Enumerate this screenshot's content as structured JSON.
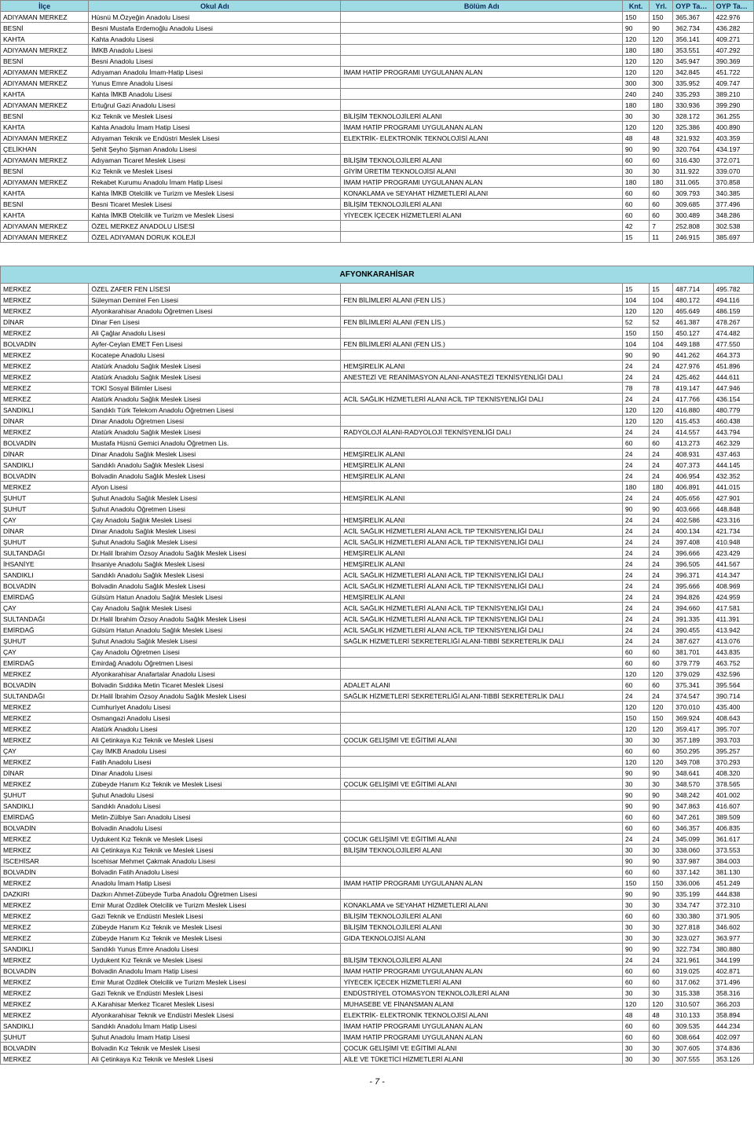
{
  "header": {
    "cols": [
      "İlçe",
      "Okul Adı",
      "Bölüm Adı",
      "Knt.",
      "Yrl.",
      "OYP Taban Puan",
      "OYP Tavan Puan"
    ]
  },
  "section2_title": "AFYONKARAHİSAR",
  "page_number": "- 7 -",
  "rows1": [
    [
      "ADIYAMAN MERKEZ",
      "Hüsnü M.Özyeğin Anadolu Lisesi",
      "",
      "150",
      "150",
      "365.367",
      "422.976"
    ],
    [
      "BESNİ",
      "Besni Mustafa Erdemoğlu Anadolu Lisesi",
      "",
      "90",
      "90",
      "362.734",
      "436.282"
    ],
    [
      "KAHTA",
      "Kahta Anadolu Lisesi",
      "",
      "120",
      "120",
      "356.141",
      "409.271"
    ],
    [
      "ADIYAMAN MERKEZ",
      "İMKB Anadolu Lisesi",
      "",
      "180",
      "180",
      "353.551",
      "407.292"
    ],
    [
      "BESNİ",
      "Besni Anadolu Lisesi",
      "",
      "120",
      "120",
      "345.947",
      "390.369"
    ],
    [
      "ADIYAMAN MERKEZ",
      "Adıyaman Anadolu İmam-Hatip Lisesi",
      "İMAM HATİP PROGRAMI UYGULANAN ALAN",
      "120",
      "120",
      "342.845",
      "451.722"
    ],
    [
      "ADIYAMAN MERKEZ",
      "Yunus Emre Anadolu Lisesi",
      "",
      "300",
      "300",
      "335.952",
      "409.747"
    ],
    [
      "KAHTA",
      "Kahta İMKB Anadolu Lisesi",
      "",
      "240",
      "240",
      "335.293",
      "389.210"
    ],
    [
      "ADIYAMAN MERKEZ",
      "Ertuğrul Gazi Anadolu Lisesi",
      "",
      "180",
      "180",
      "330.936",
      "399.290"
    ],
    [
      "BESNİ",
      "Kız Teknik ve Meslek Lisesi",
      "BİLİŞİM TEKNOLOJİLERİ ALANI",
      "30",
      "30",
      "328.172",
      "361.255"
    ],
    [
      "KAHTA",
      "Kahta Anadolu İmam Hatip Lisesi",
      "İMAM HATİP PROGRAMI UYGULANAN ALAN",
      "120",
      "120",
      "325.386",
      "400.890"
    ],
    [
      "ADIYAMAN MERKEZ",
      "Adıyaman Teknik ve Endüstri Meslek Lisesi",
      "ELEKTRİK- ELEKTRONİK TEKNOLOJİSİ ALANI",
      "48",
      "48",
      "321.932",
      "403.359"
    ],
    [
      "ÇELİKHAN",
      "Şehit Şeyho Şişman Anadolu Lisesi",
      "",
      "90",
      "90",
      "320.764",
      "434.197"
    ],
    [
      "ADIYAMAN MERKEZ",
      "Adıyaman Ticaret Meslek Lisesi",
      "BİLİŞİM TEKNOLOJİLERİ ALANI",
      "60",
      "60",
      "316.430",
      "372.071"
    ],
    [
      "BESNİ",
      "Kız Teknik ve Meslek Lisesi",
      "GİYİM ÜRETİM TEKNOLOJİSİ ALANI",
      "30",
      "30",
      "311.922",
      "339.070"
    ],
    [
      "ADIYAMAN MERKEZ",
      "Rekabet Kurumu Anadolu İmam Hatip Lisesi",
      "İMAM HATİP PROGRAMI UYGULANAN ALAN",
      "180",
      "180",
      "311.065",
      "370.858"
    ],
    [
      "KAHTA",
      "Kahta  İMKB Otelcilik ve Turizm ve Meslek Lisesi",
      "KONAKLAMA ve SEYAHAT HİZMETLERİ ALANI",
      "60",
      "60",
      "309.793",
      "340.385"
    ],
    [
      "BESNİ",
      "Besni Ticaret Meslek Lisesi",
      "BİLİŞİM TEKNOLOJİLERİ ALANI",
      "60",
      "60",
      "309.685",
      "377.496"
    ],
    [
      "KAHTA",
      "Kahta  İMKB Otelcilik ve Turizm ve Meslek Lisesi",
      "YİYECEK İÇECEK HİZMETLERİ ALANI",
      "60",
      "60",
      "300.489",
      "348.286"
    ],
    [
      "ADIYAMAN MERKEZ",
      "ÖZEL MERKEZ ANADOLU LİSESİ",
      "",
      "42",
      "7",
      "252.808",
      "302.538"
    ],
    [
      "ADIYAMAN MERKEZ",
      "ÖZEL ADIYAMAN DORUK KOLEJİ",
      "",
      "15",
      "11",
      "246.915",
      "385.697"
    ]
  ],
  "rows2": [
    [
      "MERKEZ",
      "ÖZEL ZAFER FEN LİSESİ",
      "",
      "15",
      "15",
      "487.714",
      "495.782"
    ],
    [
      "MERKEZ",
      "Süleyman Demirel Fen Lisesi",
      "FEN BİLİMLERİ ALANI (FEN LİS.)",
      "104",
      "104",
      "480.172",
      "494.116"
    ],
    [
      "MERKEZ",
      "Afyonkarahisar Anadolu Öğretmen Lisesi",
      "",
      "120",
      "120",
      "465.649",
      "486.159"
    ],
    [
      "DİNAR",
      "Dinar Fen Lisesi",
      "FEN BİLİMLERİ ALANI (FEN LİS.)",
      "52",
      "52",
      "461.387",
      "478.267"
    ],
    [
      "MERKEZ",
      "Ali Çağlar Anadolu Lisesi",
      "",
      "150",
      "150",
      "450.127",
      "474.482"
    ],
    [
      "BOLVADİN",
      "Ayfer-Ceylan EMET Fen Lisesi",
      "FEN BİLİMLERİ ALANI (FEN LİS.)",
      "104",
      "104",
      "449.188",
      "477.550"
    ],
    [
      "MERKEZ",
      "Kocatepe Anadolu Lisesi",
      "",
      "90",
      "90",
      "441.262",
      "464.373"
    ],
    [
      "MERKEZ",
      "Atatürk Anadolu Sağlık Meslek Lisesi",
      "HEMŞİRELİK ALANI",
      "24",
      "24",
      "427.976",
      "451.896"
    ],
    [
      "MERKEZ",
      "Atatürk Anadolu Sağlık Meslek Lisesi",
      "ANESTEZİ VE REANİMASYON ALANI-ANASTEZİ TEKNİSYENLİĞİ DALI",
      "24",
      "24",
      "425.462",
      "444.611"
    ],
    [
      "MERKEZ",
      "TOKİ Sosyal Bilimler Lisesi",
      "",
      "78",
      "78",
      "419.147",
      "447.946"
    ],
    [
      "MERKEZ",
      "Atatürk Anadolu Sağlık Meslek Lisesi",
      "ACİL SAĞLIK HİZMETLERİ ALANI ACİL TIP TEKNİSYENLİĞİ DALI",
      "24",
      "24",
      "417.766",
      "436.154"
    ],
    [
      "SANDIKLI",
      "Sandıklı Türk Telekom Anadolu Öğretmen Lisesi",
      "",
      "120",
      "120",
      "416.880",
      "480.779"
    ],
    [
      "DİNAR",
      "Dinar Anadolu Öğretmen Lisesi",
      "",
      "120",
      "120",
      "415.453",
      "460.438"
    ],
    [
      "MERKEZ",
      "Atatürk Anadolu Sağlık Meslek Lisesi",
      "RADYOLOJİ ALANI-RADYOLOJİ TEKNİSYENLİĞİ DALI",
      "24",
      "24",
      "414.557",
      "443.794"
    ],
    [
      "BOLVADİN",
      "Mustafa Hüsnü Gemici Anadolu Öğretmen Lis.",
      "",
      "60",
      "60",
      "413.273",
      "462.329"
    ],
    [
      "DİNAR",
      "Dinar Anadolu Sağlık Meslek Lisesi",
      "HEMŞİRELİK ALANI",
      "24",
      "24",
      "408.931",
      "437.463"
    ],
    [
      "SANDIKLI",
      "Sandıklı Anadolu Sağlık Meslek Lisesi",
      "HEMŞİRELİK ALANI",
      "24",
      "24",
      "407.373",
      "444.145"
    ],
    [
      "BOLVADİN",
      "Bolvadin Anadolu Sağlık Meslek Lisesi",
      "HEMŞİRELİK ALANI",
      "24",
      "24",
      "406.954",
      "432.352"
    ],
    [
      "MERKEZ",
      "Afyon Lisesi",
      "",
      "180",
      "180",
      "406.891",
      "441.015"
    ],
    [
      "ŞUHUT",
      "Şuhut Anadolu Sağlık Meslek Lisesi",
      "HEMŞİRELİK ALANI",
      "24",
      "24",
      "405.656",
      "427.901"
    ],
    [
      "ŞUHUT",
      "Şuhut Anadolu Öğretmen Lisesi",
      "",
      "90",
      "90",
      "403.666",
      "448.848"
    ],
    [
      "ÇAY",
      "Çay Anadolu Sağlık Meslek Lisesi",
      "HEMŞİRELİK ALANI",
      "24",
      "24",
      "402.586",
      "423.316"
    ],
    [
      "DİNAR",
      "Dinar Anadolu Sağlık Meslek Lisesi",
      "ACİL SAĞLIK HİZMETLERİ ALANI ACİL TIP TEKNİSYENLİĞİ DALI",
      "24",
      "24",
      "400.134",
      "421.734"
    ],
    [
      "ŞUHUT",
      "Şuhut Anadolu Sağlık Meslek Lisesi",
      "ACİL SAĞLIK HİZMETLERİ ALANI ACİL TIP TEKNİSYENLİĞİ DALI",
      "24",
      "24",
      "397.408",
      "410.948"
    ],
    [
      "SULTANDAĞI",
      "Dr.Halil İbrahim Özsoy Anadolu Sağlık Meslek Lisesi",
      "HEMŞİRELİK ALANI",
      "24",
      "24",
      "396.666",
      "423.429"
    ],
    [
      "İHSANİYE",
      "İhsaniye Anadolu Sağlık Meslek Lisesi",
      "HEMŞİRELİK ALANI",
      "24",
      "24",
      "396.505",
      "441.567"
    ],
    [
      "SANDIKLI",
      "Sandıklı Anadolu Sağlık Meslek Lisesi",
      "ACİL SAĞLIK HİZMETLERİ ALANI ACİL TIP TEKNİSYENLİĞİ DALI",
      "24",
      "24",
      "396.371",
      "414.347"
    ],
    [
      "BOLVADİN",
      "Bolvadin Anadolu Sağlık Meslek Lisesi",
      "ACİL SAĞLIK HİZMETLERİ ALANI ACİL TIP TEKNİSYENLİĞİ DALI",
      "24",
      "24",
      "395.666",
      "408.969"
    ],
    [
      "EMİRDAĞ",
      "Gülsüm Hatun Anadolu Sağlık Meslek Lisesi",
      "HEMŞİRELİK ALANI",
      "24",
      "24",
      "394.826",
      "424.959"
    ],
    [
      "ÇAY",
      "Çay Anadolu Sağlık Meslek Lisesi",
      "ACİL SAĞLIK HİZMETLERİ ALANI ACİL TIP TEKNİSYENLİĞİ DALI",
      "24",
      "24",
      "394.660",
      "417.581"
    ],
    [
      "SULTANDAĞI",
      "Dr.Halil İbrahim Özsoy Anadolu Sağlık Meslek Lisesi",
      "ACİL SAĞLIK HİZMETLERİ ALANI ACİL TIP TEKNİSYENLİĞİ DALI",
      "24",
      "24",
      "391.335",
      "411.391"
    ],
    [
      "EMİRDAĞ",
      "Gülsüm Hatun Anadolu Sağlık Meslek Lisesi",
      "ACİL SAĞLIK HİZMETLERİ ALANI ACİL TIP TEKNİSYENLİĞİ DALI",
      "24",
      "24",
      "390.455",
      "413.942"
    ],
    [
      "ŞUHUT",
      "Şuhut Anadolu Sağlık Meslek Lisesi",
      "SAĞLIK HİZMETLERİ SEKRETERLİĞİ ALANI-TIBBİ SEKRETERLİK DALI",
      "24",
      "24",
      "387.627",
      "413.076"
    ],
    [
      "ÇAY",
      "Çay Anadolu Öğretmen Lisesi",
      "",
      "60",
      "60",
      "381.701",
      "443.835"
    ],
    [
      "EMİRDAĞ",
      "Emirdağ Anadolu Öğretmen Lisesi",
      "",
      "60",
      "60",
      "379.779",
      "463.752"
    ],
    [
      "MERKEZ",
      "Afyonkarahisar Anafartalar Anadolu Lisesi",
      "",
      "120",
      "120",
      "379.029",
      "432.596"
    ],
    [
      "BOLVADİN",
      "Bolvadin Sıddıka Metin Ticaret Meslek Lisesi",
      "ADALET ALANI",
      "60",
      "60",
      "375.341",
      "395.564"
    ],
    [
      "SULTANDAĞI",
      "Dr.Halil İbrahim Özsoy Anadolu Sağlık Meslek Lisesi",
      "SAĞLIK HİZMETLERİ SEKRETERLİĞİ ALANI-TIBBİ SEKRETERLİK DALI",
      "24",
      "24",
      "374.547",
      "390.714"
    ],
    [
      "MERKEZ",
      "Cumhuriyet Anadolu Lisesi",
      "",
      "120",
      "120",
      "370.010",
      "435.400"
    ],
    [
      "MERKEZ",
      "Osmangazi Anadolu Lisesi",
      "",
      "150",
      "150",
      "369.924",
      "408.643"
    ],
    [
      "MERKEZ",
      "Atatürk Anadolu Lisesi",
      "",
      "120",
      "120",
      "359.417",
      "395.707"
    ],
    [
      "MERKEZ",
      "Ali Çetinkaya Kız Teknik ve Meslek Lisesi",
      "ÇOCUK GELİŞİMİ VE EĞİTİMİ ALANI",
      "30",
      "30",
      "357.189",
      "393.703"
    ],
    [
      "ÇAY",
      "Çay İMKB Anadolu Lisesi",
      "",
      "60",
      "60",
      "350.295",
      "395.257"
    ],
    [
      "MERKEZ",
      "Fatih Anadolu Lisesi",
      "",
      "120",
      "120",
      "349.708",
      "370.293"
    ],
    [
      "DİNAR",
      "Dinar Anadolu Lisesi",
      "",
      "90",
      "90",
      "348.641",
      "408.320"
    ],
    [
      "MERKEZ",
      "Zübeyde Hanım Kız Teknik ve Meslek Lisesi",
      "ÇOCUK GELİŞİMİ VE EĞİTİMİ ALANI",
      "30",
      "30",
      "348.570",
      "378.565"
    ],
    [
      "ŞUHUT",
      "Şuhut Anadolu Lisesi",
      "",
      "90",
      "90",
      "348.242",
      "401.002"
    ],
    [
      "SANDIKLI",
      "Sandıklı Anadolu Lisesi",
      "",
      "90",
      "90",
      "347.863",
      "416.607"
    ],
    [
      "EMİRDAĞ",
      "Metin-Zülbiye Sarı Anadolu Lisesi",
      "",
      "60",
      "60",
      "347.261",
      "389.509"
    ],
    [
      "BOLVADİN",
      "Bolvadin Anadolu Lisesi",
      "",
      "60",
      "60",
      "346.357",
      "406.835"
    ],
    [
      "MERKEZ",
      "Uydukent Kız Teknik ve Meslek Lisesi",
      "ÇOCUK GELİŞİMİ VE EĞİTİMİ ALANI",
      "24",
      "24",
      "345.099",
      "361.617"
    ],
    [
      "MERKEZ",
      "Ali Çetinkaya Kız Teknik ve Meslek Lisesi",
      "BİLİŞİM TEKNOLOJİLERİ ALANI",
      "30",
      "30",
      "338.060",
      "373.553"
    ],
    [
      "İSCEHİSAR",
      "İscehisar Mehmet Çakmak Anadolu Lisesi",
      "",
      "90",
      "90",
      "337.987",
      "384.003"
    ],
    [
      "BOLVADİN",
      "Bolvadin Fatih Anadolu Lisesi",
      "",
      "60",
      "60",
      "337.142",
      "381.130"
    ],
    [
      "MERKEZ",
      "Anadolu İmam Hatip Lisesi",
      "İMAM HATİP PROGRAMI UYGULANAN ALAN",
      "150",
      "150",
      "336.006",
      "451.249"
    ],
    [
      "DAZKIRI",
      "Dazkırı Ahmet-Zübeyde Turba Anadolu Öğretmen Lisesi",
      "",
      "90",
      "90",
      "335.199",
      "444.838"
    ],
    [
      "MERKEZ",
      "Emir Murat Özdilek Otelcilik ve Turizm Meslek Lisesi",
      "KONAKLAMA ve SEYAHAT HİZMETLERİ ALANI",
      "30",
      "30",
      "334.747",
      "372.310"
    ],
    [
      "MERKEZ",
      "Gazi Teknik ve Endüstri Meslek Lisesi",
      "BİLİŞİM TEKNOLOJİLERİ ALANI",
      "60",
      "60",
      "330.380",
      "371.905"
    ],
    [
      "MERKEZ",
      "Zübeyde Hanım Kız Teknik ve Meslek Lisesi",
      "BİLİŞİM TEKNOLOJİLERİ ALANI",
      "30",
      "30",
      "327.818",
      "346.602"
    ],
    [
      "MERKEZ",
      "Zübeyde Hanım Kız Teknik ve Meslek Lisesi",
      "GIDA TEKNOLOJİSİ ALANI",
      "30",
      "30",
      "323.027",
      "363.977"
    ],
    [
      "SANDIKLI",
      "Sandıklı Yunus Emre Anadolu Lisesi",
      "",
      "90",
      "90",
      "322.734",
      "380.880"
    ],
    [
      "MERKEZ",
      "Uydukent Kız Teknik ve Meslek Lisesi",
      "BİLİŞİM TEKNOLOJİLERİ ALANI",
      "24",
      "24",
      "321.961",
      "344.199"
    ],
    [
      "BOLVADİN",
      "Bolvadin Anadolu İmam Hatip Lisesi",
      "İMAM HATİP PROGRAMI UYGULANAN ALAN",
      "60",
      "60",
      "319.025",
      "402.871"
    ],
    [
      "MERKEZ",
      "Emir Murat Özdilek Otelcilik ve Turizm Meslek Lisesi",
      "YİYECEK İÇECEK HİZMETLERİ ALANI",
      "60",
      "60",
      "317.062",
      "371.496"
    ],
    [
      "MERKEZ",
      "Gazi Teknik ve Endüstri Meslek Lisesi",
      "ENDÜSTRİYEL OTOMASYON TEKNOLOJİLERİ ALANI",
      "30",
      "30",
      "315.338",
      "358.316"
    ],
    [
      "MERKEZ",
      "A.Karahisar Merkez Ticaret Meslek Lisesi",
      "MUHASEBE VE FİNANSMAN ALANI",
      "120",
      "120",
      "310.507",
      "366.203"
    ],
    [
      "MERKEZ",
      "Afyonkarahisar Teknik ve Endüstri Meslek Lisesi",
      "ELEKTRİK- ELEKTRONİK TEKNOLOJİSİ ALANI",
      "48",
      "48",
      "310.133",
      "358.894"
    ],
    [
      "SANDIKLI",
      "Sandıklı Anadolu İmam Hatip Lisesi",
      "İMAM HATİP PROGRAMI UYGULANAN ALAN",
      "60",
      "60",
      "309.535",
      "444.234"
    ],
    [
      "ŞUHUT",
      "Şuhut Anadolu İmam Hatip Lisesi",
      "İMAM HATİP PROGRAMI UYGULANAN ALAN",
      "60",
      "60",
      "308.664",
      "402.097"
    ],
    [
      "BOLVADİN",
      "Bolvadin Kız Teknik ve Meslek Lisesi",
      "ÇOCUK GELİŞİMİ VE EĞİTİMİ ALANI",
      "30",
      "30",
      "307.605",
      "374.836"
    ],
    [
      "MERKEZ",
      "Ali Çetinkaya Kız Teknik ve Meslek Lisesi",
      "AİLE VE TÜKETİCİ HİZMETLERİ ALANI",
      "30",
      "30",
      "307.555",
      "353.126"
    ]
  ]
}
